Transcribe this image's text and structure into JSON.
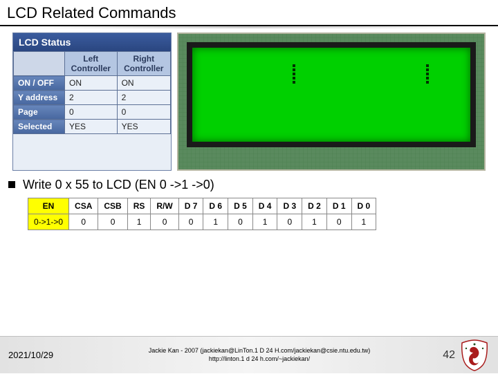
{
  "title": "LCD Related Commands",
  "status_panel": {
    "header": "LCD Status",
    "columns": [
      "",
      "Left Controller",
      "Right Controller"
    ],
    "rows": [
      {
        "label": "ON / OFF",
        "left": "ON",
        "right": "ON"
      },
      {
        "label": "Y address",
        "left": "2",
        "right": "2"
      },
      {
        "label": "Page",
        "left": "0",
        "right": "0"
      },
      {
        "label": "Selected",
        "left": "YES",
        "right": "YES"
      }
    ]
  },
  "body_line": "Write 0 x 55 to LCD (EN 0 ->1 ->0)",
  "byte_table": {
    "headers": [
      "EN",
      "CSA",
      "CSB",
      "RS",
      "R/W",
      "D 7",
      "D 6",
      "D 5",
      "D 4",
      "D 3",
      "D 2",
      "D 1",
      "D 0"
    ],
    "values": [
      "0->1->0",
      "0",
      "0",
      "1",
      "0",
      "0",
      "1",
      "0",
      "1",
      "0",
      "1",
      "0",
      "1"
    ],
    "highlight_first_col": true,
    "highlight_color": "#ffff00"
  },
  "footer": {
    "date": "2021/10/29",
    "credit_line1": "Jackie Kan - 2007 (jackiekan@LinTon.1 D 24 H.com/jackiekan@csie.ntu.edu.tw)",
    "credit_line2": "http://linton.1 d 24 h.com/~jackiekan/",
    "page_number": "42"
  },
  "colors": {
    "title_rule": "#000000",
    "status_header_bg": "#2a4680",
    "lcd_green": "#00d000",
    "pcb_green": "#5a8a5e",
    "highlight": "#ffff00"
  }
}
